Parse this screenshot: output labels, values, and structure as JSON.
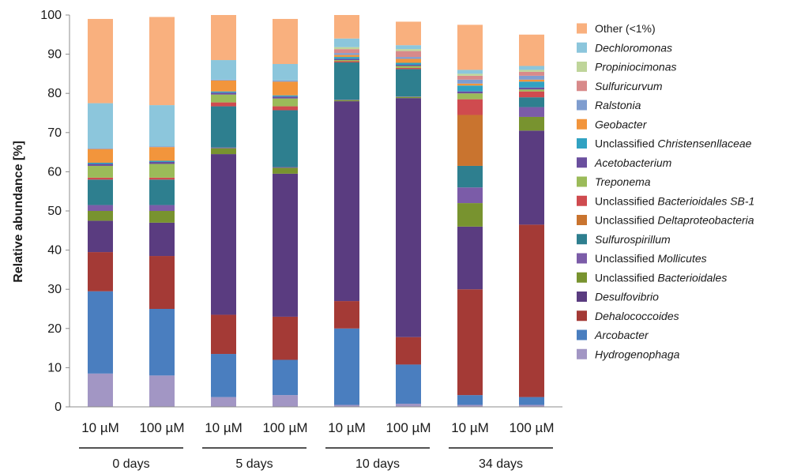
{
  "chart_data": {
    "type": "bar",
    "stacked": true,
    "ylabel": "Relative abundance [%]",
    "xlabel": "",
    "ylim": [
      0,
      100
    ],
    "yticks": [
      0,
      10,
      20,
      30,
      40,
      50,
      60,
      70,
      80,
      90,
      100
    ],
    "grid": false,
    "legend_position": "right",
    "categories": [
      "10 µM",
      "100 µM",
      "10 µM",
      "100 µM",
      "10 µM",
      "100 µM",
      "10 µM",
      "100 µM"
    ],
    "groups": [
      {
        "label": "0 days",
        "members": [
          0,
          1
        ]
      },
      {
        "label": "5 days",
        "members": [
          2,
          3
        ]
      },
      {
        "label": "10 days",
        "members": [
          4,
          5
        ]
      },
      {
        "label": "34 days",
        "members": [
          6,
          7
        ]
      }
    ],
    "series": [
      {
        "name": "Hydrogenophaga",
        "prefix": "",
        "italic": "Hydrogenophaga",
        "color": "#a296c4",
        "values": [
          8.5,
          8,
          2.5,
          3,
          0.5,
          0.8,
          0.5,
          0.5
        ]
      },
      {
        "name": "Arcobacter",
        "prefix": "",
        "italic": "Arcobacter",
        "color": "#4a7ebf",
        "values": [
          21,
          17,
          11,
          9,
          19.5,
          10,
          2.5,
          2
        ]
      },
      {
        "name": "Dehalococcoides",
        "prefix": "",
        "italic": "Dehalococcoides",
        "color": "#a43a36",
        "values": [
          10,
          13.5,
          10,
          11,
          7,
          7,
          27,
          44
        ]
      },
      {
        "name": "Desulfovibrio",
        "prefix": "",
        "italic": "Desulfovibrio",
        "color": "#5a3c80",
        "values": [
          8,
          8.5,
          41,
          36.5,
          51,
          61,
          16,
          24
        ]
      },
      {
        "name": "Unclassified Bacterioidales",
        "prefix": "Unclassified ",
        "italic": "Bacterioidales",
        "color": "#78932f",
        "values": [
          2.5,
          3,
          1.5,
          1.5,
          0.3,
          0.3,
          6,
          3.5
        ]
      },
      {
        "name": "Unclassified Mollicutes",
        "prefix": "Unclassified ",
        "italic": "Mollicutes",
        "color": "#7b5ca8",
        "values": [
          1.5,
          1.5,
          0.2,
          0.2,
          0.1,
          0.1,
          4,
          2.5
        ]
      },
      {
        "name": "Sulfurospirillum",
        "prefix": "",
        "italic": "Sulfurospirillum",
        "color": "#2e7f8f",
        "values": [
          6.5,
          6.5,
          10.5,
          14.5,
          9.5,
          7,
          5.5,
          2.5
        ]
      },
      {
        "name": "Unclassified Deltaproteobacteria",
        "prefix": "Unclassified ",
        "italic": "Deltaproteobacteria",
        "color": "#c9742f",
        "values": [
          0,
          0,
          0,
          0,
          0,
          0,
          13,
          0
        ]
      },
      {
        "name": "Unclassified Bacterioidales SB-1",
        "prefix": "Unclassified ",
        "italic": "Bacterioidales SB-1",
        "color": "#cf4b4f",
        "values": [
          0.5,
          0.5,
          1,
          1,
          0.3,
          0.3,
          4,
          1.5
        ]
      },
      {
        "name": "Treponema",
        "prefix": "",
        "italic": "Treponema",
        "color": "#9bbb59",
        "values": [
          3,
          3.5,
          2,
          2,
          0.3,
          0.5,
          1.5,
          0.5
        ]
      },
      {
        "name": "Acetobacterium",
        "prefix": "",
        "italic": "Acetobacterium",
        "color": "#6a4f9e",
        "values": [
          0.5,
          0.5,
          0.5,
          0.5,
          0.3,
          0.3,
          0.5,
          0.5
        ]
      },
      {
        "name": "Unclassified Christensenllaceae",
        "prefix": "Unclassified ",
        "italic": "Christensenllaceae",
        "color": "#31a2c2",
        "values": [
          0.3,
          0.3,
          0.3,
          0.3,
          0.5,
          0.5,
          1.5,
          1.5
        ]
      },
      {
        "name": "Geobacter",
        "prefix": "",
        "italic": "Geobacter",
        "color": "#f2953c",
        "values": [
          3.5,
          3.5,
          2.8,
          3.5,
          0.5,
          1,
          0.5,
          0.5
        ]
      },
      {
        "name": "Ralstonia",
        "prefix": "",
        "italic": "Ralstonia",
        "color": "#7f9dcf",
        "values": [
          0.2,
          0.2,
          0.2,
          0.3,
          0.5,
          0.5,
          1,
          1
        ]
      },
      {
        "name": "Sulfuricurvum",
        "prefix": "",
        "italic": "Sulfuricurvum",
        "color": "#d88a8a",
        "values": [
          0,
          0,
          0,
          0,
          1,
          1.5,
          1,
          1
        ]
      },
      {
        "name": "Propiniocimonas",
        "prefix": "",
        "italic": "Propiniocimonas",
        "color": "#bfd59a",
        "values": [
          0,
          0,
          0,
          0,
          0.5,
          0.5,
          0.5,
          0.5
        ]
      },
      {
        "name": "Dechloromonas",
        "prefix": "",
        "italic": "Dechloromonas",
        "color": "#8cc6dc",
        "values": [
          11.5,
          10.5,
          5,
          4.2,
          2.2,
          1,
          1,
          1
        ]
      },
      {
        "name": "Other (<1%)",
        "prefix": "",
        "italic": "",
        "plain": "Other (<1%)",
        "color": "#f9b07e",
        "values": [
          21.5,
          22.5,
          11.5,
          11.5,
          6,
          6,
          11.5,
          8
        ]
      }
    ]
  }
}
